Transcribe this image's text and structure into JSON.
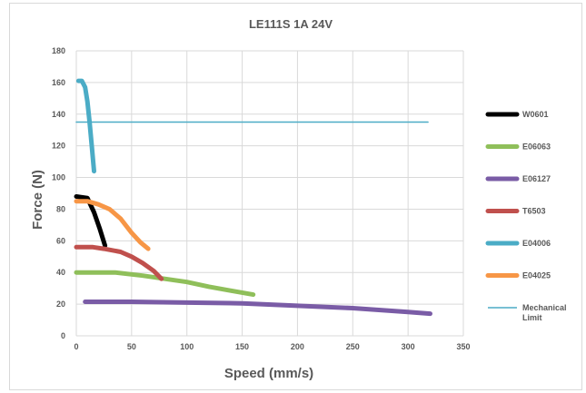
{
  "chart_data": {
    "type": "line",
    "title": "LE111S  1A  24V",
    "xlabel": "Speed (mm/s)",
    "ylabel": "Force (N)",
    "xlim": [
      0,
      350
    ],
    "ylim": [
      0,
      180
    ],
    "xticks": [
      0,
      50,
      100,
      150,
      200,
      250,
      300,
      350
    ],
    "yticks": [
      0,
      20,
      40,
      60,
      80,
      100,
      120,
      140,
      160,
      180
    ],
    "grid": true,
    "legend_position": "right",
    "series": [
      {
        "name": "W0601",
        "color": "#000000",
        "width": 5,
        "points": [
          [
            0,
            88
          ],
          [
            10,
            87
          ],
          [
            16,
            78
          ],
          [
            21,
            68
          ],
          [
            26,
            57
          ]
        ]
      },
      {
        "name": "E06063",
        "color": "#8fbf5a",
        "width": 5,
        "points": [
          [
            0,
            40
          ],
          [
            10,
            40
          ],
          [
            25,
            40
          ],
          [
            35,
            40
          ],
          [
            60,
            38
          ],
          [
            80,
            36
          ],
          [
            100,
            34
          ],
          [
            120,
            31
          ],
          [
            140,
            28.5
          ],
          [
            160,
            26
          ]
        ]
      },
      {
        "name": "E06127",
        "color": "#7a5ca6",
        "width": 5,
        "points": [
          [
            8,
            21.5
          ],
          [
            50,
            21.5
          ],
          [
            100,
            21
          ],
          [
            150,
            20.5
          ],
          [
            200,
            19
          ],
          [
            250,
            17.5
          ],
          [
            300,
            15
          ],
          [
            320,
            14
          ]
        ]
      },
      {
        "name": "T6503",
        "color": "#c0504d",
        "width": 5,
        "points": [
          [
            0,
            56
          ],
          [
            15,
            56
          ],
          [
            25,
            55
          ],
          [
            40,
            53
          ],
          [
            50,
            50
          ],
          [
            60,
            46
          ],
          [
            70,
            41
          ],
          [
            77,
            36
          ]
        ]
      },
      {
        "name": "E04006",
        "color": "#4bacc6",
        "width": 5,
        "points": [
          [
            2,
            161
          ],
          [
            5,
            161
          ],
          [
            8,
            157
          ],
          [
            10,
            148
          ],
          [
            12,
            135
          ],
          [
            14,
            120
          ],
          [
            16,
            104
          ]
        ]
      },
      {
        "name": "E04025",
        "color": "#f79646",
        "width": 5,
        "points": [
          [
            0,
            85
          ],
          [
            10,
            85
          ],
          [
            20,
            83
          ],
          [
            30,
            80
          ],
          [
            40,
            74
          ],
          [
            50,
            65
          ],
          [
            58,
            59
          ],
          [
            65,
            55
          ]
        ]
      },
      {
        "name": "Mechanical Limit",
        "color": "#4bacc6",
        "width": 1.5,
        "points": [
          [
            0,
            135
          ],
          [
            318,
            135
          ]
        ]
      }
    ]
  }
}
